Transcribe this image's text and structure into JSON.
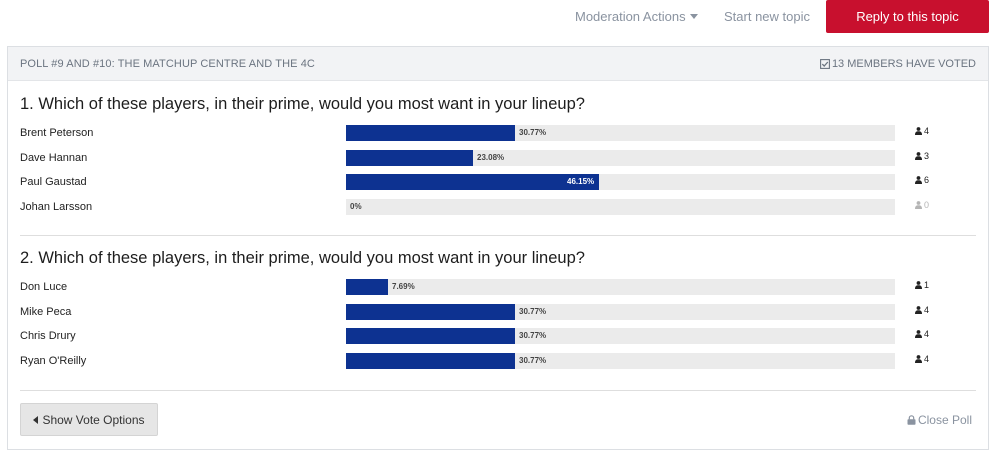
{
  "toolbar": {
    "moderation_label": "Moderation Actions",
    "start_topic_label": "Start new topic",
    "reply_label": "Reply to this topic",
    "accent_color": "#c8102e"
  },
  "poll": {
    "title": "POLL #9 AND #10: THE MATCHUP CENTRE AND THE 4C",
    "voted_text": "13 MEMBERS HAVE VOTED",
    "bar_color": "#0d3291",
    "questions": [
      {
        "title": "1. Which of these players, in their prime, would you most want in your lineup?",
        "options": [
          {
            "label": "Brent Peterson",
            "percent": 30.77,
            "percent_text": "30.77%",
            "votes": "4"
          },
          {
            "label": "Dave Hannan",
            "percent": 23.08,
            "percent_text": "23.08%",
            "votes": "3"
          },
          {
            "label": "Paul Gaustad",
            "percent": 46.15,
            "percent_text": "46.15%",
            "votes": "6"
          },
          {
            "label": "Johan Larsson",
            "percent": 0,
            "percent_text": "0%",
            "votes": "0"
          }
        ]
      },
      {
        "title": "2. Which of these players, in their prime, would you most want in your lineup?",
        "options": [
          {
            "label": "Don Luce",
            "percent": 7.69,
            "percent_text": "7.69%",
            "votes": "1"
          },
          {
            "label": "Mike Peca",
            "percent": 30.77,
            "percent_text": "30.77%",
            "votes": "4"
          },
          {
            "label": "Chris Drury",
            "percent": 30.77,
            "percent_text": "30.77%",
            "votes": "4"
          },
          {
            "label": "Ryan O'Reilly",
            "percent": 30.77,
            "percent_text": "30.77%",
            "votes": "4"
          }
        ]
      }
    ],
    "show_votes_label": "Show Vote Options",
    "close_poll_label": "Close Poll"
  }
}
